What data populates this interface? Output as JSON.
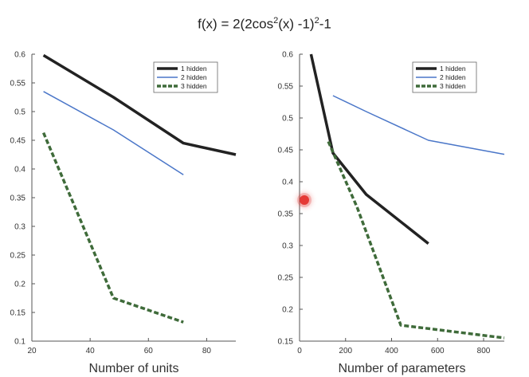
{
  "title": {
    "base": "f(x) = 2(2cos",
    "exp1": "2",
    "mid": "(x) -1)",
    "exp2": "2",
    "tail": "-1"
  },
  "chart_data": [
    {
      "type": "line",
      "xlabel": "Number of units",
      "ylabel": "",
      "xlim": [
        20,
        90
      ],
      "ylim": [
        0.1,
        0.6
      ],
      "xticks": [
        20,
        40,
        60,
        80
      ],
      "yticks": [
        0.1,
        0.15,
        0.2,
        0.25,
        0.3,
        0.35,
        0.4,
        0.45,
        0.5,
        0.55,
        0.6
      ],
      "ytick_labels": [
        "0.1",
        "0.15",
        "0.2",
        "0.25",
        "0.3",
        "0.35",
        "0.4",
        "0.45",
        "0.5",
        "0.55",
        "0.6"
      ],
      "grid": false,
      "legend": "top-right",
      "series": [
        {
          "name": "1 hidden",
          "color": "#222222",
          "style": "solid",
          "width": 3.5,
          "x": [
            24,
            48,
            72,
            90
          ],
          "y": [
            0.598,
            0.525,
            0.445,
            0.425
          ]
        },
        {
          "name": "2 hidden",
          "color": "#4a76c8",
          "style": "solid",
          "width": 1.5,
          "x": [
            24,
            48,
            72
          ],
          "y": [
            0.535,
            0.468,
            0.39
          ]
        },
        {
          "name": "3 hidden",
          "color": "#3f6b3a",
          "style": "dashed",
          "width": 3.5,
          "x": [
            24,
            48,
            72
          ],
          "y": [
            0.463,
            0.175,
            0.133
          ]
        }
      ]
    },
    {
      "type": "line",
      "xlabel": "Number of parameters",
      "ylabel": "",
      "xlim": [
        0,
        890
      ],
      "ylim": [
        0.15,
        0.6
      ],
      "xticks": [
        0,
        200,
        400,
        600,
        800
      ],
      "yticks": [
        0.15,
        0.2,
        0.25,
        0.3,
        0.35,
        0.4,
        0.45,
        0.5,
        0.55,
        0.6
      ],
      "ytick_labels": [
        "0.15",
        "0.2",
        "0.25",
        "0.3",
        "0.35",
        "0.4",
        "0.45",
        "0.5",
        "0.55",
        "0.6"
      ],
      "grid": false,
      "legend": "top-right",
      "series": [
        {
          "name": "1 hidden",
          "color": "#222222",
          "style": "solid",
          "width": 3.5,
          "x": [
            50,
            145,
            290,
            560
          ],
          "y": [
            0.6,
            0.445,
            0.38,
            0.303
          ]
        },
        {
          "name": "2 hidden",
          "color": "#4a76c8",
          "style": "solid",
          "width": 1.5,
          "x": [
            145,
            290,
            560,
            890
          ],
          "y": [
            0.535,
            0.51,
            0.465,
            0.443
          ]
        },
        {
          "name": "3 hidden",
          "color": "#3f6b3a",
          "style": "dashed",
          "width": 3.5,
          "x": [
            125,
            250,
            440,
            890
          ],
          "y": [
            0.463,
            0.36,
            0.175,
            0.155
          ]
        }
      ]
    }
  ]
}
